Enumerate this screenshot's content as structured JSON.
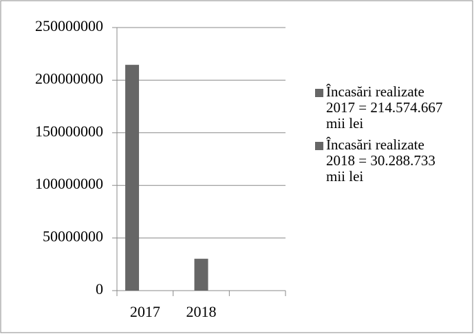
{
  "chart_data": {
    "type": "bar",
    "categories": [
      "2017",
      "2018",
      null
    ],
    "series": [
      {
        "name": "Încasări realizate 2017 = 214.574.667 mii lei",
        "color": "#666666",
        "values": [
          214574667,
          null,
          null
        ]
      },
      {
        "name": "Încasări realizate 2018 = 30.288.733 mii lei",
        "color": "#666666",
        "values": [
          null,
          30288733,
          null
        ]
      }
    ],
    "ylim": [
      0,
      250000000
    ],
    "yticks": [
      0,
      50000000,
      100000000,
      150000000,
      200000000,
      250000000
    ],
    "grid": true,
    "legend": "right"
  }
}
